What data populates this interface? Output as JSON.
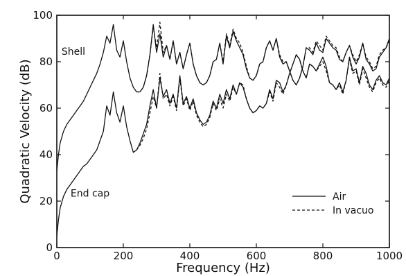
{
  "chart_data": {
    "type": "line",
    "title": "",
    "xlabel": "Frequency (Hz)",
    "ylabel": "Quadratic Velocity (dB)",
    "xlim": [
      0,
      1000
    ],
    "ylim": [
      0,
      100
    ],
    "xticks": [
      0,
      200,
      400,
      600,
      800,
      1000
    ],
    "yticks": [
      0,
      20,
      40,
      60,
      80,
      100
    ],
    "grid": false,
    "legend_position": "lower-right",
    "annotations": [
      {
        "text": "Shell",
        "x": 50,
        "y": 83
      },
      {
        "text": "End cap",
        "x": 100,
        "y": 22
      }
    ],
    "series": [
      {
        "name": "Air",
        "style": "solid",
        "curve": "Shell",
        "x": [
          0,
          5,
          10,
          20,
          30,
          40,
          50,
          60,
          70,
          80,
          90,
          100,
          110,
          120,
          130,
          140,
          150,
          160,
          170,
          180,
          190,
          200,
          210,
          220,
          230,
          240,
          250,
          260,
          270,
          280,
          290,
          300,
          310,
          320,
          330,
          340,
          350,
          360,
          370,
          380,
          390,
          400,
          410,
          420,
          430,
          440,
          450,
          460,
          470,
          480,
          490,
          500,
          510,
          520,
          530,
          540,
          550,
          560,
          570,
          580,
          590,
          600,
          610,
          620,
          630,
          640,
          650,
          660,
          670,
          680,
          690,
          700,
          710,
          720,
          730,
          740,
          750,
          760,
          770,
          780,
          790,
          800,
          810,
          820,
          830,
          840,
          850,
          860,
          870,
          880,
          890,
          900,
          910,
          920,
          930,
          940,
          950,
          960,
          970,
          980,
          990,
          1000
        ],
        "y": [
          33,
          40,
          45,
          50,
          53,
          55,
          57,
          59,
          61,
          63,
          66,
          69,
          72,
          75,
          79,
          84,
          91,
          88,
          96,
          85,
          82,
          89,
          80,
          73,
          69,
          67,
          67,
          69,
          74,
          83,
          96,
          84,
          92,
          82,
          87,
          81,
          89,
          79,
          84,
          77,
          83,
          88,
          79,
          74,
          71,
          70,
          71,
          74,
          80,
          81,
          88,
          79,
          91,
          86,
          93,
          89,
          86,
          83,
          77,
          73,
          72,
          74,
          79,
          80,
          86,
          89,
          85,
          90,
          82,
          79,
          80,
          76,
          72,
          70,
          73,
          78,
          86,
          85,
          83,
          88,
          85,
          84,
          90,
          88,
          86,
          85,
          81,
          80,
          84,
          87,
          82,
          79,
          82,
          88,
          81,
          79,
          76,
          77,
          82,
          84,
          86,
          90
        ]
      },
      {
        "name": "Air",
        "style": "solid",
        "curve": "End cap",
        "x": [
          0,
          5,
          10,
          20,
          30,
          40,
          50,
          60,
          70,
          80,
          90,
          100,
          110,
          120,
          130,
          140,
          150,
          160,
          170,
          180,
          190,
          200,
          210,
          220,
          230,
          240,
          250,
          260,
          270,
          280,
          290,
          300,
          310,
          320,
          330,
          340,
          350,
          360,
          370,
          380,
          390,
          400,
          410,
          420,
          430,
          440,
          450,
          460,
          470,
          480,
          490,
          500,
          510,
          520,
          530,
          540,
          550,
          560,
          570,
          580,
          590,
          600,
          610,
          620,
          630,
          640,
          650,
          660,
          670,
          680,
          690,
          700,
          710,
          720,
          730,
          740,
          750,
          760,
          770,
          780,
          790,
          800,
          810,
          820,
          830,
          840,
          850,
          860,
          870,
          880,
          890,
          900,
          910,
          920,
          930,
          940,
          950,
          960,
          970,
          980,
          990,
          1000
        ],
        "y": [
          5,
          12,
          17,
          22,
          25,
          27,
          29,
          31,
          33,
          35,
          36,
          38,
          40,
          42,
          46,
          50,
          61,
          57,
          67,
          58,
          54,
          61,
          52,
          46,
          41,
          42,
          45,
          49,
          53,
          61,
          68,
          60,
          73,
          65,
          68,
          62,
          66,
          60,
          74,
          62,
          65,
          60,
          64,
          58,
          55,
          53,
          54,
          57,
          63,
          60,
          66,
          62,
          68,
          64,
          70,
          66,
          71,
          69,
          64,
          60,
          58,
          59,
          61,
          60,
          62,
          68,
          64,
          72,
          71,
          67,
          70,
          75,
          79,
          83,
          81,
          76,
          73,
          79,
          78,
          76,
          79,
          82,
          78,
          71,
          70,
          68,
          71,
          67,
          72,
          82,
          76,
          77,
          71,
          78,
          75,
          70,
          68,
          72,
          74,
          71,
          70,
          73
        ]
      },
      {
        "name": "In vacuo",
        "style": "dashed",
        "curve": "Shell",
        "x": [
          240,
          250,
          260,
          270,
          280,
          290,
          300,
          310,
          320,
          330,
          340,
          350,
          360,
          370,
          380,
          390,
          400,
          410,
          420,
          430,
          440,
          450,
          460,
          470,
          480,
          490,
          500,
          510,
          520,
          530,
          540,
          550,
          560,
          570,
          580,
          590,
          600,
          610,
          620,
          630,
          640,
          650,
          660,
          670,
          680,
          690,
          700,
          710,
          720,
          730,
          740,
          750,
          760,
          770,
          780,
          790,
          800,
          810,
          820,
          830,
          840,
          850,
          860,
          870,
          880,
          890,
          900,
          910,
          920,
          930,
          940,
          950,
          960,
          970,
          980,
          990,
          1000
        ],
        "y": [
          67,
          67,
          69,
          74,
          83,
          95,
          86,
          97,
          84,
          87,
          81,
          89,
          79,
          84,
          77,
          83,
          88,
          79,
          74,
          71,
          70,
          71,
          74,
          80,
          81,
          88,
          80,
          92,
          87,
          94,
          90,
          88,
          84,
          78,
          73,
          72,
          74,
          79,
          80,
          86,
          89,
          85,
          90,
          83,
          80,
          80,
          76,
          72,
          70,
          73,
          78,
          86,
          86,
          84,
          89,
          87,
          85,
          91,
          89,
          87,
          86,
          82,
          80,
          84,
          87,
          83,
          80,
          83,
          88,
          82,
          80,
          77,
          78,
          83,
          85,
          86,
          89
        ]
      },
      {
        "name": "In vacuo",
        "style": "dashed",
        "curve": "End cap",
        "x": [
          240,
          250,
          260,
          270,
          280,
          290,
          300,
          310,
          320,
          330,
          340,
          350,
          360,
          370,
          380,
          390,
          400,
          410,
          420,
          430,
          440,
          450,
          460,
          470,
          480,
          490,
          500,
          510,
          520,
          530,
          540,
          550,
          560,
          570,
          580,
          590,
          600,
          610,
          620,
          630,
          640,
          650,
          660,
          670,
          680,
          690,
          700,
          710,
          720,
          730,
          740,
          750,
          760,
          770,
          780,
          790,
          800,
          810,
          820,
          830,
          840,
          850,
          860,
          870,
          880,
          890,
          900,
          910,
          920,
          930,
          940,
          950,
          960,
          970,
          980,
          990,
          1000
        ],
        "y": [
          42,
          44,
          47,
          51,
          58,
          65,
          60,
          75,
          64,
          66,
          61,
          65,
          59,
          73,
          61,
          64,
          59,
          63,
          57,
          54,
          52,
          53,
          56,
          62,
          59,
          64,
          60,
          66,
          63,
          69,
          66,
          71,
          70,
          64,
          60,
          58,
          59,
          61,
          60,
          62,
          67,
          63,
          71,
          69,
          66,
          70,
          75,
          79,
          83,
          81,
          76,
          73,
          79,
          78,
          76,
          78,
          80,
          76,
          71,
          70,
          68,
          70,
          66,
          72,
          81,
          75,
          76,
          70,
          77,
          73,
          69,
          67,
          71,
          73,
          70,
          69,
          72
        ]
      }
    ]
  }
}
